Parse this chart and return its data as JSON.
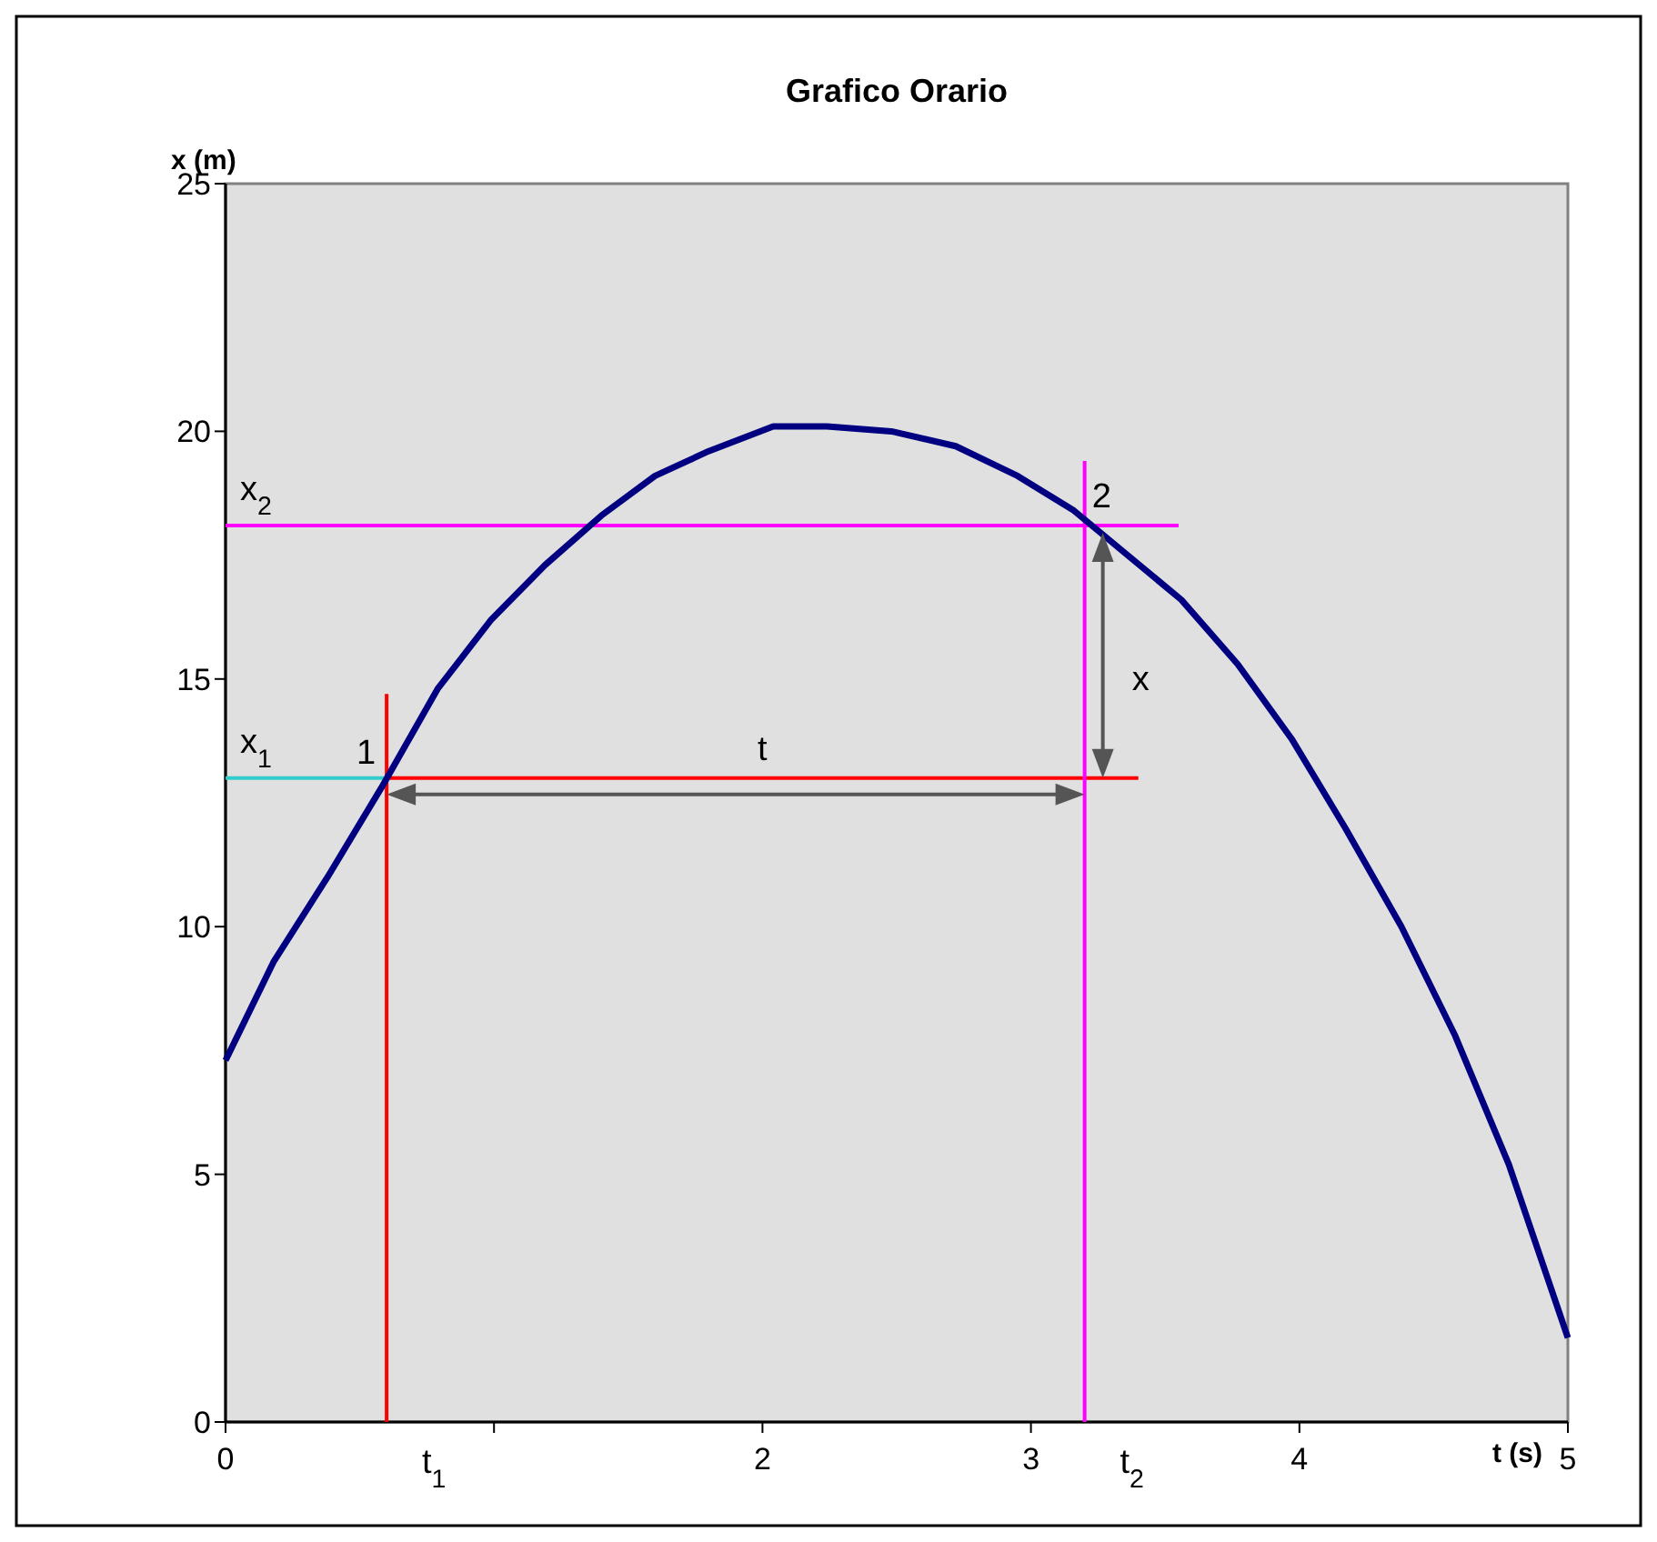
{
  "chart_data": {
    "type": "line",
    "title": "Grafico Orario",
    "xlabel": "t (s)",
    "ylabel": "x (m)",
    "xlim": [
      0,
      5
    ],
    "ylim": [
      0,
      25
    ],
    "xticks": [
      0,
      {
        "value": 1,
        "label": null
      },
      2,
      3,
      4,
      5
    ],
    "yticks": [
      0,
      5,
      10,
      15,
      20,
      25
    ],
    "grid": false,
    "marker": "none",
    "line_style": "solid",
    "series": [
      {
        "color": "#000080",
        "x": [
          0,
          0.18,
          0.38,
          0.58,
          0.79,
          0.99,
          1.19,
          1.4,
          1.6,
          1.8,
          2.04,
          2.24,
          2.48,
          2.72,
          2.95,
          3.16,
          3.36,
          3.56,
          3.77,
          3.97,
          4.17,
          4.38,
          4.58,
          4.78,
          5.0
        ],
        "values": [
          7.3,
          9.3,
          11.0,
          12.8,
          14.8,
          16.2,
          17.3,
          18.3,
          19.1,
          19.6,
          20.1,
          20.1,
          20.0,
          19.7,
          19.1,
          18.4,
          17.5,
          16.6,
          15.3,
          13.8,
          12.0,
          10.0,
          7.8,
          5.2,
          1.7
        ]
      },
      {
        "color": "#ff0000",
        "x": [
          0.6,
          0.6
        ],
        "values": [
          0,
          14.7
        ]
      },
      {
        "color": "#ff0000",
        "x": [
          0.6,
          3.4
        ],
        "values": [
          13.0,
          13.0
        ]
      },
      {
        "color": "#33cccc",
        "x": [
          0,
          0.6
        ],
        "values": [
          13.0,
          13.0
        ]
      },
      {
        "color": "#ff00ff",
        "x": [
          3.2,
          3.2
        ],
        "values": [
          0,
          19.4
        ]
      },
      {
        "color": "#ff00ff",
        "x": [
          0,
          3.55
        ],
        "values": [
          18.1,
          18.1
        ]
      }
    ],
    "annotations": [
      {
        "text": "x$_{1}$",
        "x": 0,
        "y": 13.0
      },
      {
        "text": "x$_{2}$",
        "x": 0,
        "y": 18.1
      },
      {
        "text": "1",
        "x": 0.6,
        "y": 13.0
      },
      {
        "text": "2",
        "x": 3.2,
        "y": 18.1
      },
      {
        "text": "t",
        "x": 2.0,
        "y": 13.0
      },
      {
        "text": "x",
        "x": 3.2,
        "y": 15.0
      },
      {
        "text": "t$_{1}$",
        "x": 0.6,
        "y": 0
      },
      {
        "text": "t$_{2}$",
        "x": 3.2,
        "y": 0
      }
    ]
  }
}
